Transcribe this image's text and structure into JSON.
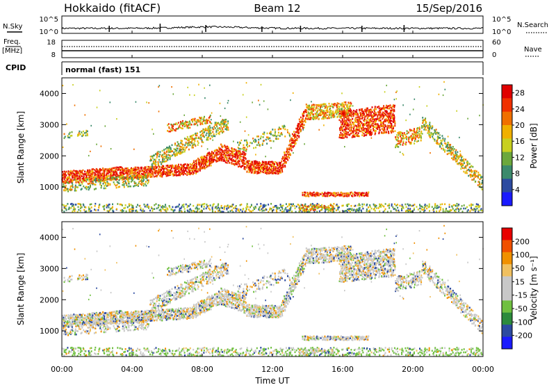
{
  "header": {
    "station": "Hokkaido (fitACF)",
    "beam": "Beam 12",
    "date": "15/Sep/2016"
  },
  "top_panels": {
    "nsky_label": "N.Sky",
    "nsearch_label": "N.Search",
    "noise_ticks_left": [
      "10^5",
      "10^0"
    ],
    "noise_ticks_right": [
      "10^5",
      "10^0"
    ],
    "freq_label_1": "Freq.",
    "freq_label_2": "[MHz]",
    "freq_ticks": [
      "18",
      "8"
    ],
    "nave_label": "Nave",
    "nave_ticks": [
      "60",
      "0"
    ],
    "cpid_label": "CPID",
    "cpid_value": "normal (fast) 151"
  },
  "colors": {
    "power_scale": [
      "#1a1aff",
      "#2c4aa0",
      "#3c8a6c",
      "#6ca83c",
      "#c8d020",
      "#f0b000",
      "#f07000",
      "#f03000",
      "#e00000"
    ],
    "velocity_scale": [
      "#e80000",
      "#f05000",
      "#f09000",
      "#f0c060",
      "#c8c8c8",
      "#c8c8c8",
      "#70c040",
      "#2c8a3c",
      "#2c4aa0",
      "#1a1aff"
    ],
    "ground_scatter": "#c8c8c8"
  },
  "chart_data": [
    {
      "type": "heatmap",
      "name": "power",
      "xlabel": "",
      "ylabel": "Slant Range [km]",
      "x_ticks": [
        "00:00",
        "04:00",
        "08:00",
        "12:00",
        "16:00",
        "20:00",
        "00:00"
      ],
      "xlim_hours": [
        0,
        24
      ],
      "ylim_km": [
        180,
        4500
      ],
      "y_ticks": [
        1000,
        2000,
        3000,
        4000
      ],
      "colorbar_label": "Power [dB]",
      "colorbar_ticks": [
        4,
        8,
        12,
        16,
        20,
        24,
        28
      ],
      "colorbar_range": [
        0,
        30
      ]
    },
    {
      "type": "heatmap",
      "name": "velocity",
      "xlabel": "Time UT",
      "ylabel": "Slant Range [km]",
      "x_ticks": [
        "00:00",
        "04:00",
        "08:00",
        "12:00",
        "16:00",
        "20:00",
        "00:00"
      ],
      "xlim_hours": [
        0,
        24
      ],
      "ylim_km": [
        180,
        4500
      ],
      "y_ticks": [
        1000,
        2000,
        3000,
        4000
      ],
      "colorbar_label": "Velocity [m s⁻¹]",
      "colorbar_ticks": [
        200,
        100,
        50,
        15,
        -15,
        -50,
        -100,
        -200
      ],
      "colorbar_range": [
        -250,
        250
      ]
    }
  ]
}
